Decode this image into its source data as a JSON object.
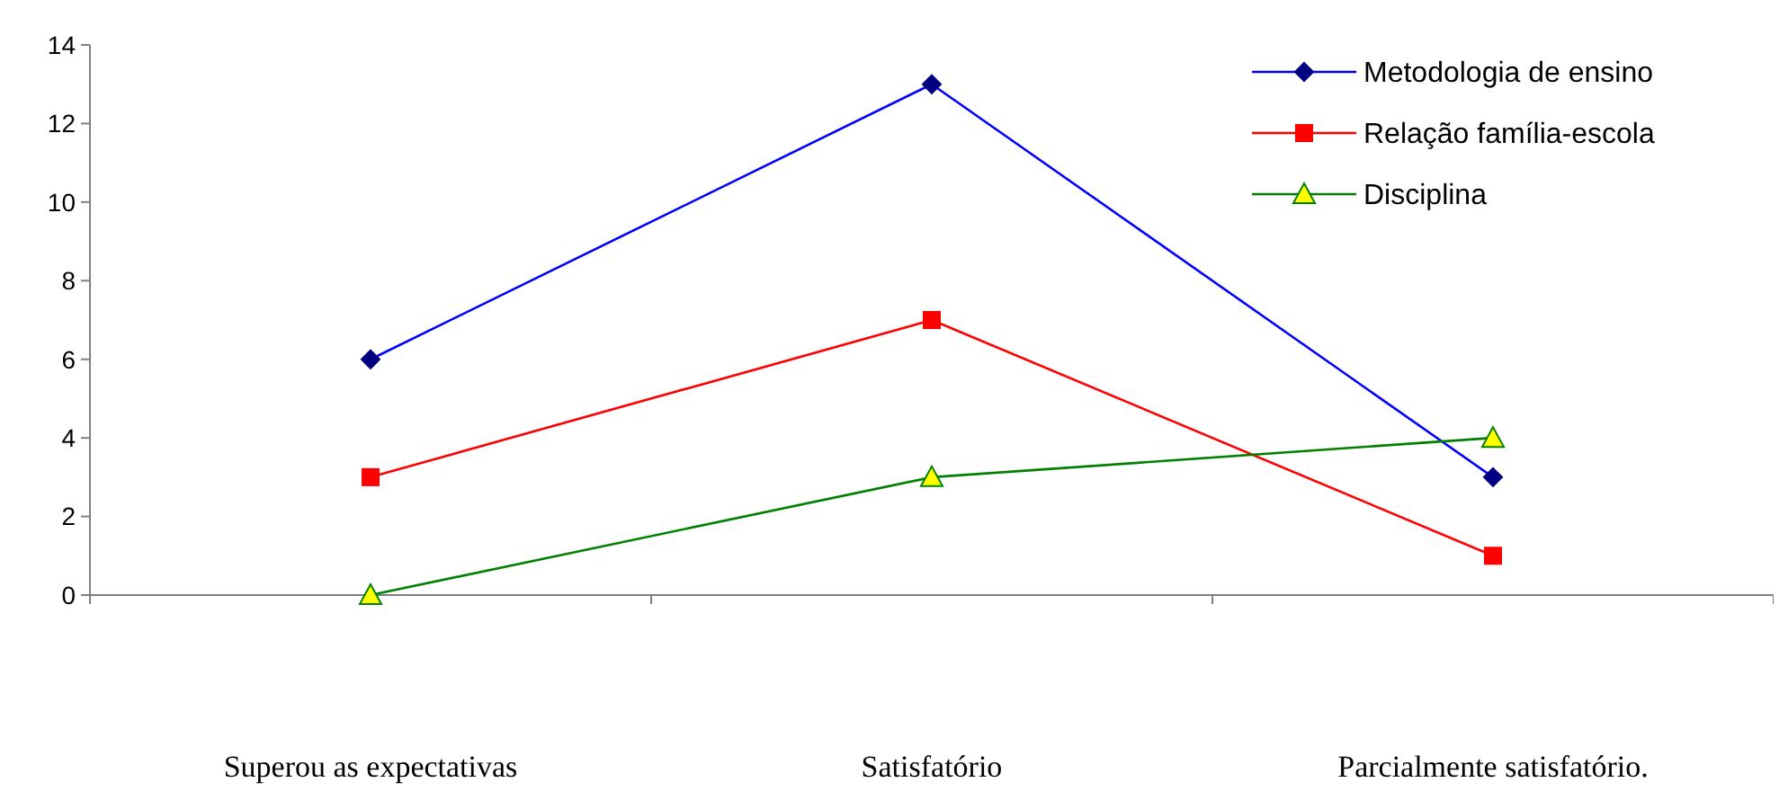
{
  "chart_data": {
    "type": "line",
    "categories": [
      "Superou as expectativas",
      "Satisfatório",
      "Parcialmente satisfatório."
    ],
    "series": [
      {
        "name": "Metodologia de ensino",
        "color": "#0000ff",
        "marker": "diamond",
        "values": [
          6,
          13,
          3
        ]
      },
      {
        "name": "Relação família-escola",
        "color": "#ff0000",
        "marker": "square",
        "values": [
          3,
          7,
          1
        ]
      },
      {
        "name": "Disciplina",
        "color": "#008000",
        "marker": "triangle",
        "values": [
          0,
          3,
          4
        ]
      }
    ],
    "ylim": [
      0,
      14
    ],
    "yticks": [
      0,
      2,
      4,
      6,
      8,
      10,
      12,
      14
    ],
    "grid": false,
    "legend": "top right"
  }
}
